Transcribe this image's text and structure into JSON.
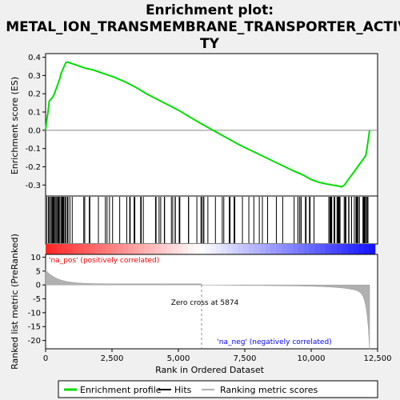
{
  "chart_data": {
    "type": "line",
    "title_lines": [
      "Enrichment plot:",
      "METAL_ION_TRANSMEMBRANE_TRANSPORTER_ACTIVI",
      "TY"
    ],
    "ylabel_top": "Enrichment score (ES)",
    "ylabel_bottom": "Ranked list metric (PreRanked)",
    "xlabel": "Rank in Ordered Dataset",
    "x_ticks": [
      0,
      2500,
      5000,
      7500,
      10000,
      12500
    ],
    "x_tick_labels": [
      "0",
      "2,500",
      "5,000",
      "7,500",
      "10,000",
      "12,500"
    ],
    "xlim": [
      0,
      12500
    ],
    "es_ticks": [
      0.4,
      0.3,
      0.2,
      0.1,
      0.0,
      -0.1,
      -0.2,
      -0.3
    ],
    "es_tick_labels": [
      "0.4",
      "0.3",
      "0.2",
      "0.1",
      "0.0",
      "-0.1",
      "-0.2",
      "-0.3"
    ],
    "es_ylim": [
      -0.36,
      0.42
    ],
    "metric_ticks": [
      10,
      5,
      0,
      -5,
      -10,
      -15,
      -20
    ],
    "metric_tick_labels": [
      "10",
      "5",
      "0",
      "-5",
      "-10",
      "-15",
      "-20"
    ],
    "metric_ylim": [
      -23,
      11
    ],
    "zero_cross": 5874,
    "zero_cross_label": "Zero cross at 5874",
    "pos_label": "'na_pos' (positively correlated)",
    "neg_label": "'na_neg' (negatively correlated)",
    "colors": {
      "es_line": "#00dd00",
      "pos_label": "#ff0000",
      "neg_label": "#0000ff",
      "metric_fill": "#b0b0b0",
      "hits": "#000000"
    },
    "es_profile": {
      "x": [
        0,
        40,
        90,
        140,
        200,
        260,
        330,
        380,
        430,
        480,
        530,
        580,
        640,
        700,
        760,
        820,
        900,
        1000,
        1100,
        1200,
        1300,
        1500,
        1800,
        2200,
        2600,
        3000,
        3400,
        3800,
        4200,
        4600,
        5000,
        5400,
        5874,
        6300,
        6800,
        7300,
        7800,
        8300,
        8800,
        9300,
        9700,
        10000,
        10300,
        10600,
        10800,
        11000,
        11150,
        11250,
        11350,
        11450,
        11550,
        11650,
        11750,
        11850,
        11950,
        12050,
        12100,
        12150,
        12200
      ],
      "y": [
        0.0,
        0.05,
        0.1,
        0.16,
        0.17,
        0.18,
        0.2,
        0.22,
        0.24,
        0.26,
        0.28,
        0.31,
        0.33,
        0.35,
        0.37,
        0.375,
        0.37,
        0.365,
        0.36,
        0.355,
        0.35,
        0.34,
        0.33,
        0.31,
        0.29,
        0.265,
        0.235,
        0.2,
        0.17,
        0.14,
        0.11,
        0.075,
        0.035,
        0.0,
        -0.04,
        -0.08,
        -0.115,
        -0.15,
        -0.185,
        -0.22,
        -0.245,
        -0.27,
        -0.285,
        -0.295,
        -0.3,
        -0.305,
        -0.31,
        -0.3,
        -0.28,
        -0.26,
        -0.24,
        -0.22,
        -0.2,
        -0.18,
        -0.16,
        -0.14,
        -0.1,
        -0.05,
        0.0
      ]
    },
    "legend": [
      {
        "name": "Enrichment profile",
        "color": "#00dd00"
      },
      {
        "name": "Hits",
        "color": "#000000"
      },
      {
        "name": "Ranking metric scores",
        "color": "#b0b0b0"
      }
    ]
  }
}
